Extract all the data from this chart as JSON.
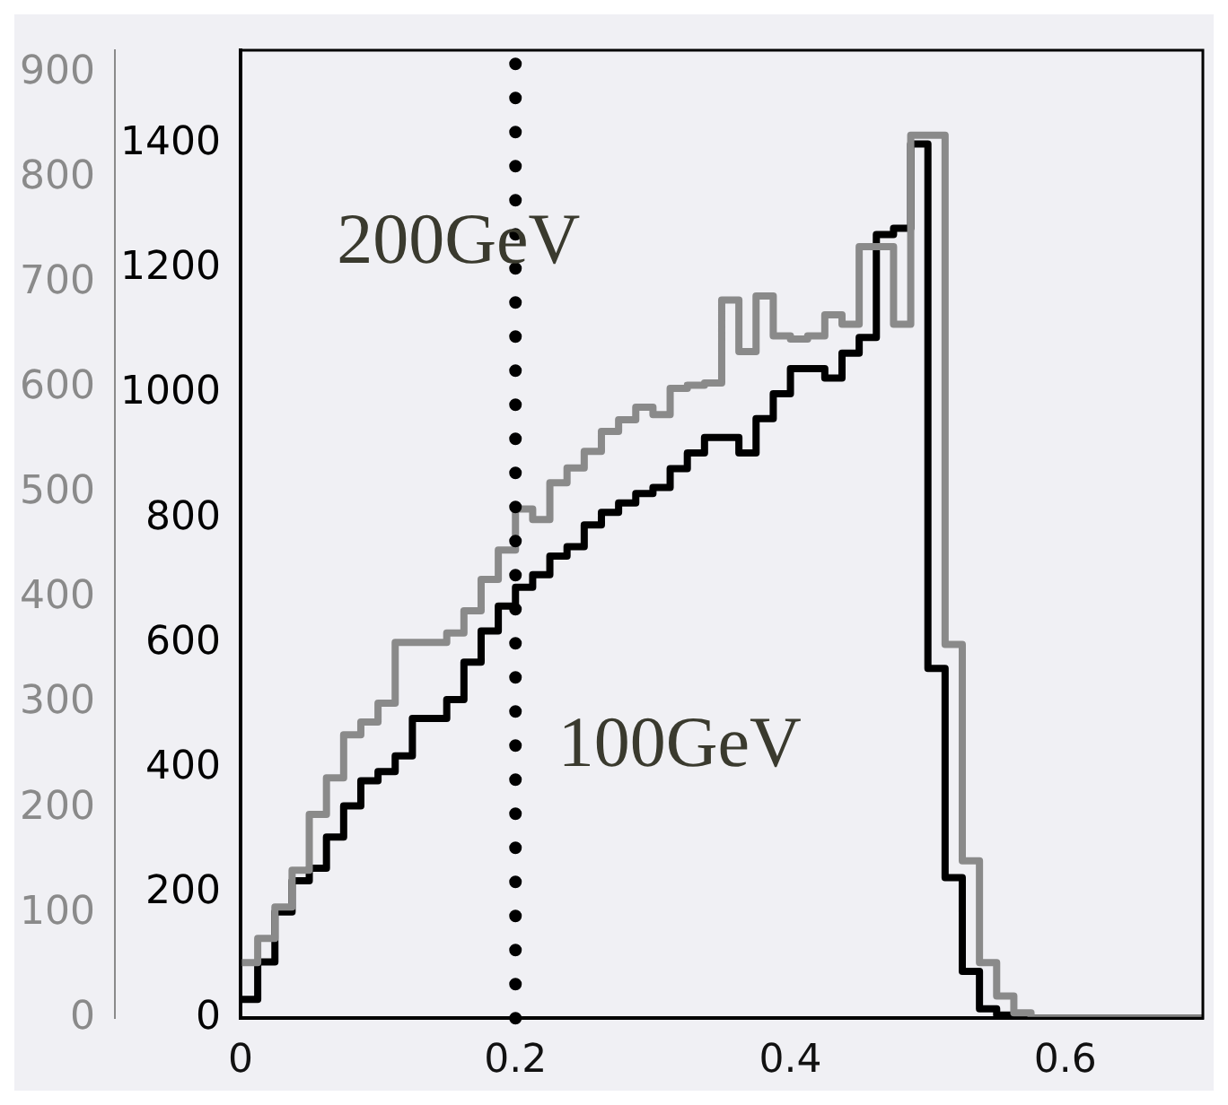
{
  "chart_data": {
    "type": "histogram",
    "bins": [
      0,
      0.0125,
      0.025,
      0.0375,
      0.05,
      0.0625,
      0.075,
      0.0875,
      0.1,
      0.1125,
      0.125,
      0.1375,
      0.15,
      0.1625,
      0.175,
      0.1875,
      0.2,
      0.2125,
      0.225,
      0.2375,
      0.25,
      0.2625,
      0.275,
      0.2875,
      0.3,
      0.3125,
      0.325,
      0.3375,
      0.35,
      0.3625,
      0.375,
      0.3875,
      0.4,
      0.4125,
      0.425,
      0.4375,
      0.45,
      0.4625,
      0.475,
      0.4875,
      0.5,
      0.5125,
      0.525,
      0.5375,
      0.55,
      0.5625,
      0.575,
      0.5875,
      0.6,
      0.6125,
      0.625,
      0.6375,
      0.65,
      0.6625,
      0.675,
      0.6875,
      0.7
    ],
    "series": [
      {
        "color": "#8a8a8a",
        "axis": "y2",
        "values": [
          53,
          76,
          106,
          141,
          194,
          229,
          270,
          282,
          300,
          358,
          358,
          358,
          367,
          388,
          418,
          446,
          485,
          475,
          510,
          524,
          540,
          559,
          570,
          582,
          575,
          600,
          603,
          605,
          684,
          635,
          688,
          650,
          647,
          650,
          670,
          661,
          735,
          735,
          661,
          841,
          841,
          356,
          150,
          53,
          21,
          5,
          0,
          0,
          0,
          0,
          0,
          0,
          0,
          0,
          0,
          0
        ]
      },
      {
        "color": "#000000",
        "values": [
          30,
          90,
          170,
          220,
          240,
          290,
          340,
          380,
          395,
          420,
          480,
          480,
          510,
          570,
          620,
          660,
          690,
          710,
          740,
          755,
          790,
          810,
          825,
          840,
          850,
          880,
          905,
          930,
          930,
          905,
          960,
          1000,
          1040,
          1040,
          1025,
          1065,
          1090,
          1255,
          1265,
          1400,
          560,
          225,
          75,
          15,
          5,
          0,
          0,
          0,
          0,
          0,
          0,
          0,
          0,
          0,
          0,
          0
        ]
      }
    ],
    "xlim": [
      0,
      0.7
    ],
    "xticks": [
      0,
      0.2,
      0.4,
      0.6
    ],
    "ylim": [
      0,
      1550
    ],
    "yticks": [
      0,
      200,
      400,
      600,
      800,
      1000,
      1200,
      1400
    ],
    "y2lim": [
      0,
      922
    ],
    "y2ticks": [
      0,
      100,
      200,
      300,
      400,
      500,
      600,
      700,
      800,
      900
    ],
    "ref_lines": [
      {
        "axis": "x",
        "value": 0.2,
        "color": "#000000",
        "line_style": "dotted"
      }
    ],
    "annotations": [
      "200GeV",
      "100GeV"
    ],
    "grid": false,
    "legend": false
  }
}
